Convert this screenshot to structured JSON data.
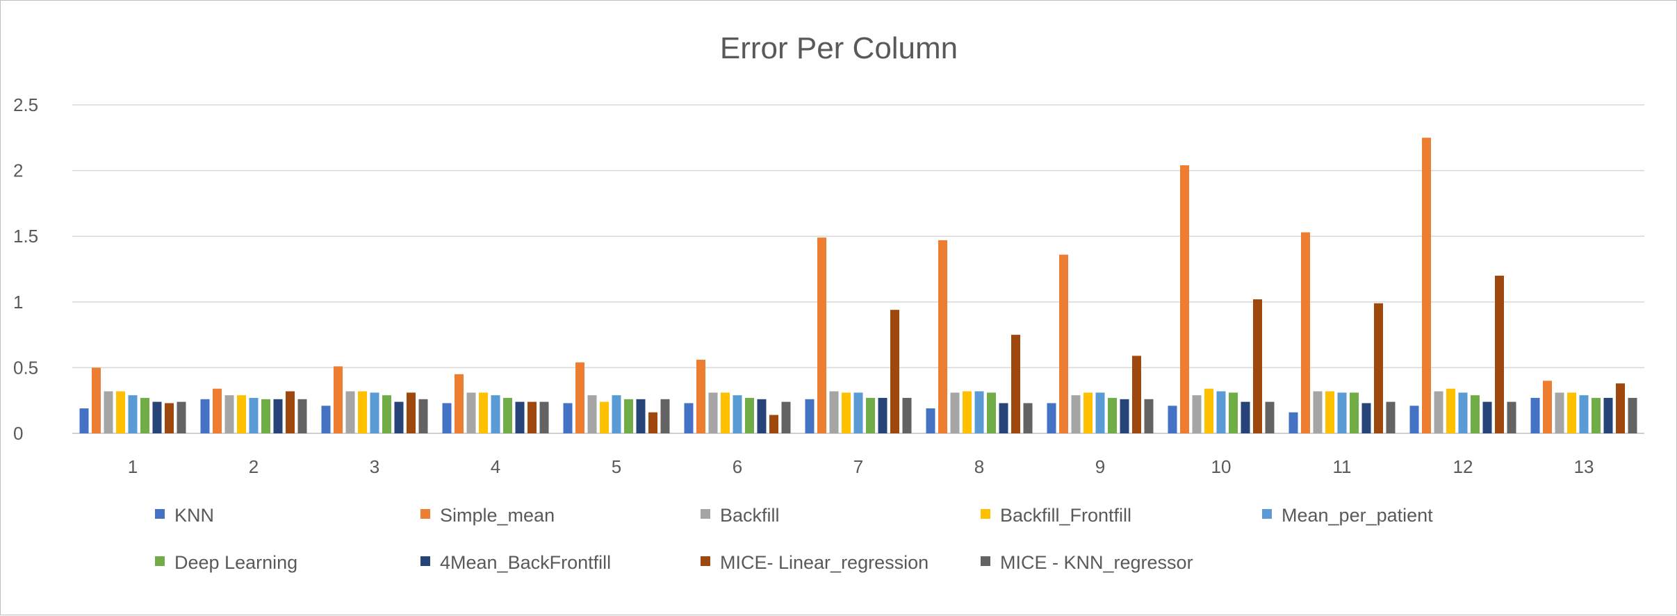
{
  "chart_data": {
    "type": "bar",
    "title": "Error Per Column",
    "xlabel": "",
    "ylabel": "",
    "ylim": [
      0,
      2.5
    ],
    "yticks": [
      "0",
      "0.5",
      "1",
      "1.5",
      "2",
      "2.5"
    ],
    "grid": true,
    "legend_position": "bottom",
    "categories": [
      "1",
      "2",
      "3",
      "4",
      "5",
      "6",
      "7",
      "8",
      "9",
      "10",
      "11",
      "12",
      "13"
    ],
    "series": [
      {
        "name": "KNN",
        "color": "#4472C4",
        "values": [
          0.19,
          0.26,
          0.21,
          0.23,
          0.23,
          0.23,
          0.26,
          0.19,
          0.23,
          0.21,
          0.16,
          0.21,
          0.27
        ]
      },
      {
        "name": "Simple_mean",
        "color": "#ED7D31",
        "values": [
          0.5,
          0.34,
          0.51,
          0.45,
          0.54,
          0.56,
          1.49,
          1.47,
          1.36,
          2.04,
          1.53,
          2.25,
          0.4
        ]
      },
      {
        "name": "Backfill",
        "color": "#A5A5A5",
        "values": [
          0.32,
          0.29,
          0.32,
          0.31,
          0.29,
          0.31,
          0.32,
          0.31,
          0.29,
          0.29,
          0.32,
          0.32,
          0.31
        ]
      },
      {
        "name": "Backfill_Frontfill",
        "color": "#FFC000",
        "values": [
          0.32,
          0.29,
          0.32,
          0.31,
          0.24,
          0.31,
          0.31,
          0.32,
          0.31,
          0.34,
          0.32,
          0.34,
          0.31
        ]
      },
      {
        "name": "Mean_per_patient",
        "color": "#5B9BD5",
        "values": [
          0.29,
          0.27,
          0.31,
          0.29,
          0.29,
          0.29,
          0.31,
          0.32,
          0.31,
          0.32,
          0.31,
          0.31,
          0.29
        ]
      },
      {
        "name": "Deep Learning",
        "color": "#70AD47",
        "values": [
          0.27,
          0.26,
          0.29,
          0.27,
          0.26,
          0.27,
          0.27,
          0.31,
          0.27,
          0.31,
          0.31,
          0.29,
          0.27
        ]
      },
      {
        "name": "4Mean_BackFrontfill",
        "color": "#264478",
        "values": [
          0.24,
          0.26,
          0.24,
          0.24,
          0.26,
          0.26,
          0.27,
          0.23,
          0.26,
          0.24,
          0.23,
          0.24,
          0.27
        ]
      },
      {
        "name": "MICE- Linear_regression",
        "color": "#9E480E",
        "values": [
          0.23,
          0.32,
          0.31,
          0.24,
          0.16,
          0.14,
          0.94,
          0.75,
          0.59,
          1.02,
          0.99,
          1.2,
          0.38
        ]
      },
      {
        "name": "MICE - KNN_regressor",
        "color": "#636363",
        "values": [
          0.24,
          0.26,
          0.26,
          0.24,
          0.26,
          0.24,
          0.27,
          0.23,
          0.26,
          0.24,
          0.24,
          0.24,
          0.27
        ]
      }
    ]
  }
}
